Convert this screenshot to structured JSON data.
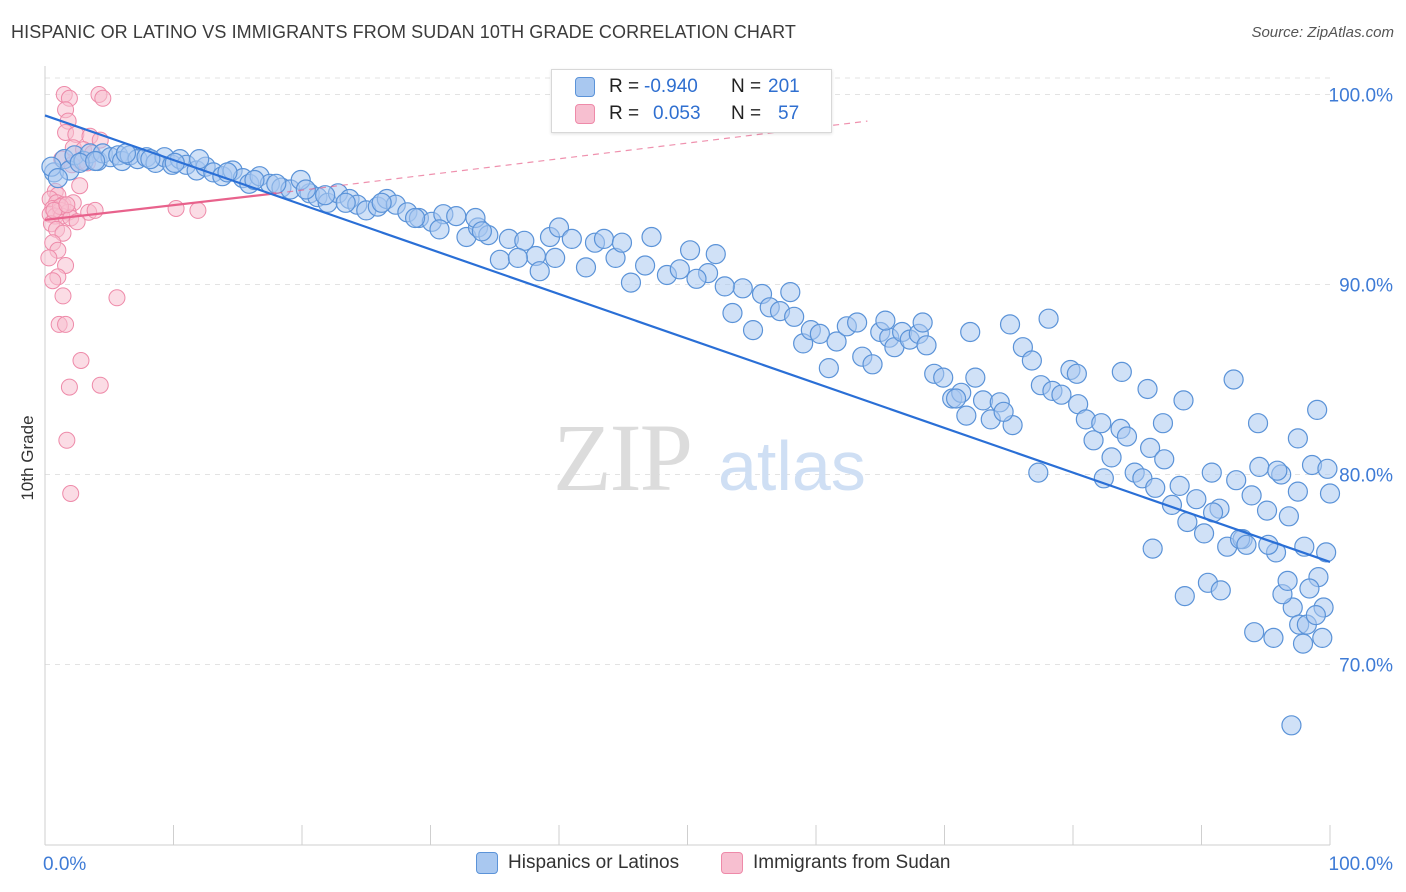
{
  "header": {
    "title": "HISPANIC OR LATINO VS IMMIGRANTS FROM SUDAN 10TH GRADE CORRELATION CHART",
    "source": "Source: ZipAtlas.com"
  },
  "watermark": {
    "zip": "ZIP",
    "atlas": "atlas"
  },
  "colors": {
    "blue_fill": "#a9c8f0",
    "blue_stroke": "#5b93d8",
    "blue_line": "#2a6fd6",
    "pink_fill": "#f7bfd0",
    "pink_stroke": "#ee8aa9",
    "pink_line": "#e8628c",
    "axis_label": "#3e7bd6",
    "grid": "#e3e3e3"
  },
  "stats": {
    "r_label": "R =",
    "n_label": "N =",
    "rows": [
      {
        "series": "Hispanics or Latinos",
        "r": "-0.940",
        "n": "201"
      },
      {
        "series": "Immigrants from Sudan",
        "r": "0.053",
        "n": "57"
      }
    ]
  },
  "chart_data": {
    "type": "scatter",
    "title": "HISPANIC OR LATINO VS IMMIGRANTS FROM SUDAN 10TH GRADE CORRELATION CHART",
    "xlabel": "",
    "ylabel": "10th Grade",
    "xlim": [
      0,
      100
    ],
    "ylim": [
      60.5,
      101.5
    ],
    "x_tick_labels": [
      "0.0%",
      "100.0%"
    ],
    "y_ticks": [
      70,
      80,
      90,
      100
    ],
    "y_tick_labels": [
      "70.0%",
      "80.0%",
      "90.0%",
      "100.0%"
    ],
    "grid": true,
    "legend_position": "bottom",
    "series": [
      {
        "name": "Hispanics or Latinos",
        "color": "#a9c8f0",
        "trend": {
          "x": [
            0,
            100
          ],
          "y": [
            98.9,
            75.4
          ]
        },
        "points": [
          [
            0.7,
            95.9
          ],
          [
            1.5,
            96.6
          ],
          [
            1.9,
            96.0
          ],
          [
            2.3,
            96.8
          ],
          [
            3.0,
            96.5
          ],
          [
            3.5,
            96.9
          ],
          [
            4.1,
            96.5
          ],
          [
            4.5,
            96.9
          ],
          [
            5.1,
            96.7
          ],
          [
            5.7,
            96.8
          ],
          [
            6.0,
            96.5
          ],
          [
            6.6,
            96.8
          ],
          [
            7.2,
            96.6
          ],
          [
            7.9,
            96.7
          ],
          [
            8.6,
            96.4
          ],
          [
            9.3,
            96.7
          ],
          [
            9.9,
            96.3
          ],
          [
            10.5,
            96.6
          ],
          [
            11.0,
            96.3
          ],
          [
            11.8,
            96.0
          ],
          [
            12.5,
            96.2
          ],
          [
            13.1,
            95.9
          ],
          [
            13.8,
            95.7
          ],
          [
            14.6,
            96.0
          ],
          [
            15.4,
            95.6
          ],
          [
            15.9,
            95.3
          ],
          [
            16.7,
            95.7
          ],
          [
            17.5,
            95.3
          ],
          [
            18.4,
            95.1
          ],
          [
            19.1,
            95.0
          ],
          [
            20.6,
            94.8
          ],
          [
            21.2,
            94.6
          ],
          [
            19.9,
            95.5
          ],
          [
            22.0,
            94.3
          ],
          [
            22.8,
            94.8
          ],
          [
            23.7,
            94.5
          ],
          [
            24.3,
            94.2
          ],
          [
            25.0,
            93.9
          ],
          [
            25.9,
            94.1
          ],
          [
            26.6,
            94.5
          ],
          [
            27.3,
            94.2
          ],
          [
            28.2,
            93.8
          ],
          [
            29.1,
            93.5
          ],
          [
            30.1,
            93.3
          ],
          [
            31.0,
            93.7
          ],
          [
            32.0,
            93.6
          ],
          [
            32.8,
            92.5
          ],
          [
            33.7,
            93.0
          ],
          [
            33.5,
            93.5
          ],
          [
            34.5,
            92.6
          ],
          [
            35.4,
            91.3
          ],
          [
            36.1,
            92.4
          ],
          [
            37.3,
            92.3
          ],
          [
            38.2,
            91.5
          ],
          [
            38.5,
            90.7
          ],
          [
            39.3,
            92.5
          ],
          [
            40.0,
            93.0
          ],
          [
            41.0,
            92.4
          ],
          [
            42.1,
            90.9
          ],
          [
            42.8,
            92.2
          ],
          [
            43.5,
            92.4
          ],
          [
            44.4,
            91.4
          ],
          [
            45.6,
            90.1
          ],
          [
            46.7,
            91.0
          ],
          [
            47.2,
            92.5
          ],
          [
            48.4,
            90.5
          ],
          [
            49.4,
            90.8
          ],
          [
            50.2,
            91.8
          ],
          [
            51.6,
            90.6
          ],
          [
            52.2,
            91.6
          ],
          [
            53.5,
            88.5
          ],
          [
            54.3,
            89.8
          ],
          [
            55.1,
            87.6
          ],
          [
            55.8,
            89.5
          ],
          [
            56.4,
            88.8
          ],
          [
            57.2,
            88.6
          ],
          [
            58.0,
            89.6
          ],
          [
            58.3,
            88.3
          ],
          [
            59.0,
            86.9
          ],
          [
            59.6,
            87.6
          ],
          [
            60.3,
            87.4
          ],
          [
            61.0,
            85.6
          ],
          [
            61.6,
            87.0
          ],
          [
            62.4,
            87.8
          ],
          [
            63.2,
            88.0
          ],
          [
            63.6,
            86.2
          ],
          [
            64.4,
            85.8
          ],
          [
            65.0,
            87.5
          ],
          [
            65.7,
            87.2
          ],
          [
            66.1,
            86.7
          ],
          [
            66.7,
            87.5
          ],
          [
            67.3,
            87.1
          ],
          [
            68.0,
            87.4
          ],
          [
            68.6,
            86.8
          ],
          [
            69.2,
            85.3
          ],
          [
            69.9,
            85.1
          ],
          [
            70.6,
            84.0
          ],
          [
            71.3,
            84.3
          ],
          [
            71.7,
            83.1
          ],
          [
            72.4,
            85.1
          ],
          [
            73.0,
            83.9
          ],
          [
            73.6,
            82.9
          ],
          [
            74.3,
            83.8
          ],
          [
            75.3,
            82.6
          ],
          [
            76.1,
            86.7
          ],
          [
            76.8,
            86.0
          ],
          [
            77.5,
            84.7
          ],
          [
            78.4,
            84.4
          ],
          [
            79.1,
            84.2
          ],
          [
            79.8,
            85.5
          ],
          [
            80.4,
            83.7
          ],
          [
            81.0,
            82.9
          ],
          [
            81.6,
            81.8
          ],
          [
            82.4,
            79.8
          ],
          [
            83.0,
            80.9
          ],
          [
            83.7,
            82.4
          ],
          [
            84.2,
            82.0
          ],
          [
            84.8,
            80.1
          ],
          [
            85.4,
            79.8
          ],
          [
            86.0,
            81.4
          ],
          [
            86.4,
            79.3
          ],
          [
            87.1,
            80.8
          ],
          [
            87.7,
            78.4
          ],
          [
            88.3,
            79.4
          ],
          [
            88.9,
            77.5
          ],
          [
            89.6,
            78.7
          ],
          [
            90.2,
            76.9
          ],
          [
            90.8,
            80.1
          ],
          [
            91.4,
            78.2
          ],
          [
            92.0,
            76.2
          ],
          [
            92.7,
            79.7
          ],
          [
            93.2,
            76.6
          ],
          [
            93.9,
            78.9
          ],
          [
            94.5,
            80.4
          ],
          [
            95.1,
            78.1
          ],
          [
            95.8,
            75.9
          ],
          [
            96.2,
            80.0
          ],
          [
            96.8,
            77.8
          ],
          [
            97.5,
            79.1
          ],
          [
            98.0,
            76.2
          ],
          [
            98.6,
            80.5
          ],
          [
            99.1,
            74.6
          ],
          [
            99.7,
            75.9
          ],
          [
            100.0,
            79.0
          ],
          [
            72.0,
            87.5
          ],
          [
            75.1,
            87.9
          ],
          [
            78.1,
            88.2
          ],
          [
            82.2,
            82.7
          ],
          [
            85.8,
            84.5
          ],
          [
            87.0,
            82.7
          ],
          [
            88.6,
            83.9
          ],
          [
            90.9,
            78.0
          ],
          [
            93.0,
            76.6
          ],
          [
            94.4,
            82.7
          ],
          [
            95.9,
            80.2
          ],
          [
            97.5,
            81.9
          ],
          [
            99.0,
            83.4
          ],
          [
            99.8,
            80.3
          ],
          [
            92.5,
            85.0
          ],
          [
            65.4,
            88.1
          ],
          [
            68.3,
            88.0
          ],
          [
            70.9,
            84.0
          ],
          [
            74.6,
            83.3
          ],
          [
            77.3,
            80.1
          ],
          [
            80.3,
            85.3
          ],
          [
            83.8,
            85.4
          ],
          [
            86.2,
            76.1
          ],
          [
            88.7,
            73.6
          ],
          [
            90.5,
            74.3
          ],
          [
            94.1,
            71.7
          ],
          [
            95.2,
            76.3
          ],
          [
            97.1,
            73.0
          ],
          [
            98.4,
            74.0
          ],
          [
            99.5,
            73.0
          ],
          [
            96.3,
            73.7
          ],
          [
            97.9,
            71.1
          ],
          [
            97.6,
            72.1
          ],
          [
            98.2,
            72.1
          ],
          [
            98.9,
            72.6
          ],
          [
            99.4,
            71.4
          ],
          [
            91.5,
            73.9
          ],
          [
            93.5,
            76.3
          ],
          [
            96.7,
            74.4
          ],
          [
            95.6,
            71.4
          ],
          [
            97.0,
            66.8
          ],
          [
            0.5,
            96.2
          ],
          [
            1.0,
            95.6
          ],
          [
            2.7,
            96.4
          ],
          [
            3.9,
            96.5
          ],
          [
            6.3,
            96.9
          ],
          [
            8.2,
            96.6
          ],
          [
            10.1,
            96.4
          ],
          [
            12.0,
            96.6
          ],
          [
            14.2,
            95.9
          ],
          [
            16.3,
            95.5
          ],
          [
            18.0,
            95.3
          ],
          [
            20.3,
            95.0
          ],
          [
            21.8,
            94.7
          ],
          [
            23.4,
            94.3
          ],
          [
            26.2,
            94.3
          ],
          [
            28.8,
            93.5
          ],
          [
            30.7,
            92.9
          ],
          [
            34.0,
            92.8
          ],
          [
            36.8,
            91.4
          ],
          [
            39.7,
            91.4
          ],
          [
            44.9,
            92.2
          ],
          [
            50.7,
            90.3
          ],
          [
            52.9,
            89.9
          ]
        ]
      },
      {
        "name": "Immigrants from Sudan",
        "color": "#f7bfd0",
        "trend": {
          "x": [
            0,
            18
          ],
          "y": [
            93.4,
            94.8
          ]
        },
        "trend_dashed": {
          "x": [
            18,
            64
          ],
          "y": [
            94.8,
            98.6
          ]
        },
        "points": [
          [
            1.5,
            100.0
          ],
          [
            1.9,
            99.8
          ],
          [
            4.2,
            100.0
          ],
          [
            4.5,
            99.8
          ],
          [
            1.6,
            99.2
          ],
          [
            1.8,
            98.6
          ],
          [
            1.6,
            98.0
          ],
          [
            2.4,
            97.9
          ],
          [
            3.5,
            97.8
          ],
          [
            4.3,
            97.6
          ],
          [
            2.2,
            97.2
          ],
          [
            3.0,
            97.1
          ],
          [
            3.7,
            96.9
          ],
          [
            1.3,
            96.6
          ],
          [
            2.7,
            96.5
          ],
          [
            2.1,
            96.3
          ],
          [
            3.3,
            96.4
          ],
          [
            2.7,
            95.2
          ],
          [
            0.8,
            94.9
          ],
          [
            1.0,
            94.7
          ],
          [
            0.4,
            94.5
          ],
          [
            0.9,
            94.3
          ],
          [
            1.4,
            94.2
          ],
          [
            2.2,
            94.3
          ],
          [
            0.6,
            94.0
          ],
          [
            1.2,
            93.9
          ],
          [
            1.8,
            93.8
          ],
          [
            0.4,
            93.7
          ],
          [
            0.8,
            93.6
          ],
          [
            1.3,
            93.6
          ],
          [
            2.0,
            93.5
          ],
          [
            3.4,
            93.8
          ],
          [
            0.5,
            93.2
          ],
          [
            0.9,
            92.9
          ],
          [
            1.4,
            92.7
          ],
          [
            0.6,
            92.2
          ],
          [
            1.0,
            91.8
          ],
          [
            0.3,
            91.4
          ],
          [
            1.6,
            91.0
          ],
          [
            1.0,
            90.4
          ],
          [
            0.6,
            90.2
          ],
          [
            1.4,
            89.4
          ],
          [
            5.6,
            89.3
          ],
          [
            1.1,
            87.9
          ],
          [
            1.6,
            87.9
          ],
          [
            2.8,
            86.0
          ],
          [
            1.9,
            84.6
          ],
          [
            4.3,
            84.7
          ],
          [
            1.7,
            81.8
          ],
          [
            2.0,
            79.0
          ],
          [
            10.2,
            94.0
          ],
          [
            11.9,
            93.9
          ],
          [
            3.9,
            93.9
          ],
          [
            1.2,
            94.1
          ],
          [
            2.5,
            93.3
          ],
          [
            0.7,
            93.9
          ],
          [
            1.7,
            94.2
          ]
        ]
      }
    ]
  }
}
